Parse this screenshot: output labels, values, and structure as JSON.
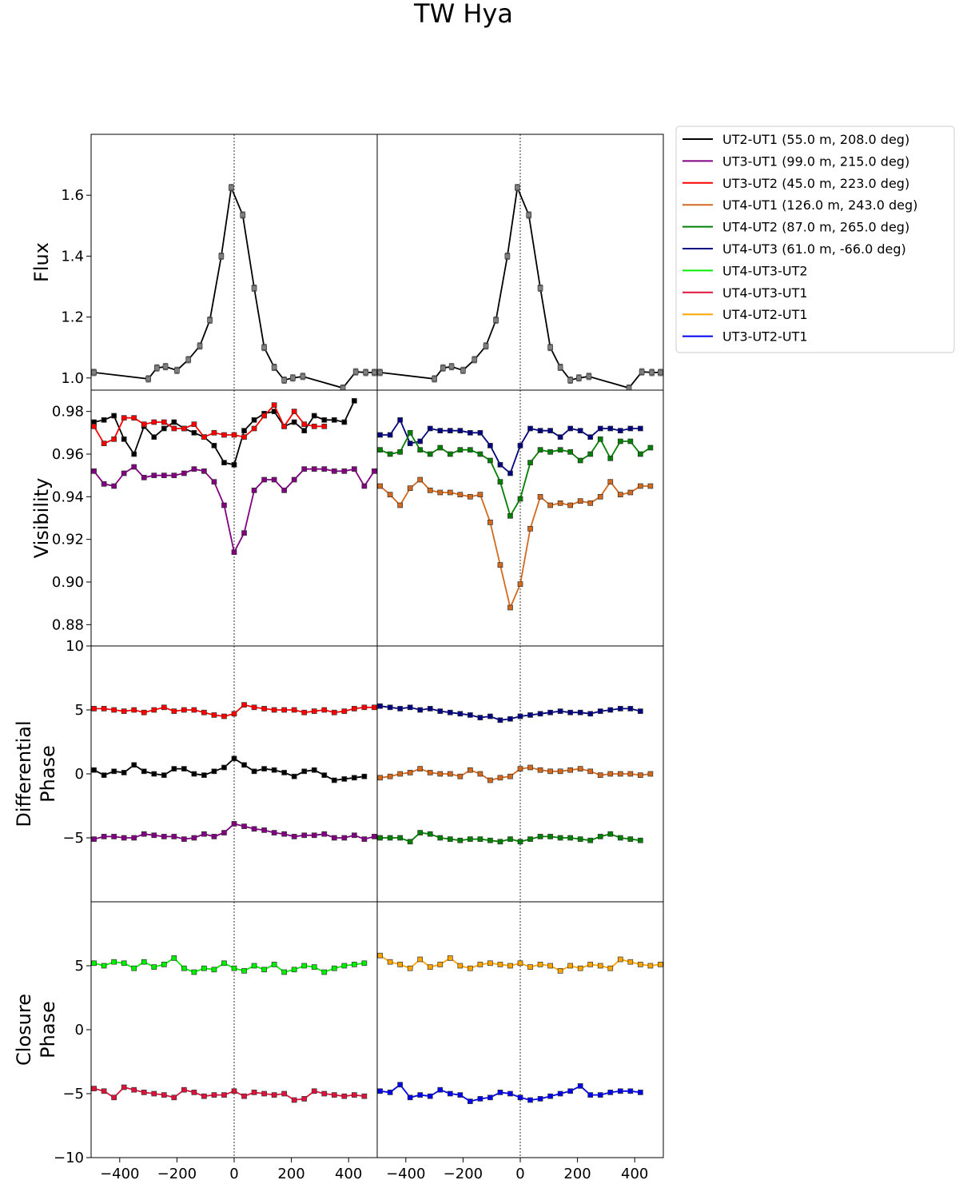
{
  "chart_data": {
    "type": "line",
    "title": "TW Hya",
    "x_range": [
      -500,
      500
    ],
    "x_ticks": [
      -400,
      -200,
      0,
      200,
      400
    ],
    "x_tick_labels": [
      "−400",
      "−200",
      "0",
      "200",
      "400"
    ],
    "x_grid_step": 35,
    "vertical_reference_line_x": 0,
    "grid": false,
    "legend_placement": "outside-right",
    "rows": [
      {
        "key": "flux",
        "ylabel_lines": [
          "Flux"
        ],
        "ylim": [
          0.96,
          1.8
        ],
        "y_ticks": [
          1.0,
          1.2,
          1.4,
          1.6
        ],
        "y_tick_labels": [
          "1.0",
          "1.2",
          "1.4",
          "1.6"
        ]
      },
      {
        "key": "visibility",
        "ylabel_lines": [
          "Visibility"
        ],
        "ylim": [
          0.87,
          0.99
        ],
        "y_ticks": [
          0.88,
          0.9,
          0.92,
          0.94,
          0.96,
          0.98
        ],
        "y_tick_labels": [
          "0.88",
          "0.90",
          "0.92",
          "0.94",
          "0.96",
          "0.98"
        ]
      },
      {
        "key": "diffphase",
        "ylabel_lines": [
          "Differential",
          "Phase"
        ],
        "ylim": [
          -10,
          10
        ],
        "y_ticks": [
          -5,
          0,
          5,
          10
        ],
        "y_tick_labels": [
          "−5",
          "0",
          "5",
          "10"
        ]
      },
      {
        "key": "closure",
        "ylabel_lines": [
          "Closure",
          "Phase"
        ],
        "ylim": [
          -10,
          10
        ],
        "y_ticks": [
          -10,
          -5,
          0,
          5
        ],
        "y_tick_labels": [
          "−10",
          "−5",
          "0",
          "5"
        ]
      }
    ],
    "legend": [
      {
        "name": "UT2-UT1 (55.0 m, 208.0 deg)",
        "color": "#000000"
      },
      {
        "name": "UT3-UT1 (99.0 m, 215.0 deg)",
        "color": "#800080"
      },
      {
        "name": "UT3-UT2 (45.0 m, 223.0 deg)",
        "color": "#ff0000"
      },
      {
        "name": "UT4-UT1 (126.0 m, 243.0 deg)",
        "color": "#d2691e"
      },
      {
        "name": "UT4-UT2 (87.0 m, 265.0 deg)",
        "color": "#008000"
      },
      {
        "name": "UT4-UT3 (61.0 m, -66.0 deg)",
        "color": "#000080"
      },
      {
        "name": "UT4-UT3-UT2",
        "color": "#00ee00"
      },
      {
        "name": "UT4-UT3-UT1",
        "color": "#dc143c"
      },
      {
        "name": "UT4-UT2-UT1",
        "color": "#ffa500"
      },
      {
        "name": "UT3-UT2-UT1",
        "color": "#0000ee"
      }
    ],
    "panels": [
      {
        "row": 0,
        "col": 0,
        "series": [
          {
            "color": "#000000",
            "marker_color": "#808080",
            "errorbars": true,
            "points": [
              [
                -490,
                1.018
              ],
              [
                -300,
                0.997
              ],
              [
                -270,
                1.033
              ],
              [
                -240,
                1.037
              ],
              [
                -200,
                1.025
              ],
              [
                -160,
                1.06
              ],
              [
                -120,
                1.105
              ],
              [
                -85,
                1.19
              ],
              [
                -45,
                1.4
              ],
              [
                -10,
                1.625
              ],
              [
                30,
                1.535
              ],
              [
                70,
                1.295
              ],
              [
                105,
                1.1
              ],
              [
                140,
                1.035
              ],
              [
                175,
                0.993
              ],
              [
                205,
                1.0
              ],
              [
                240,
                1.005
              ],
              [
                380,
                0.967
              ],
              [
                425,
                1.02
              ],
              [
                460,
                1.018
              ],
              [
                490,
                1.018
              ]
            ]
          }
        ]
      },
      {
        "row": 0,
        "col": 1,
        "series": [
          {
            "color": "#000000",
            "marker_color": "#808080",
            "errorbars": true,
            "points": [
              [
                -490,
                1.018
              ],
              [
                -300,
                0.997
              ],
              [
                -270,
                1.033
              ],
              [
                -240,
                1.037
              ],
              [
                -200,
                1.025
              ],
              [
                -160,
                1.06
              ],
              [
                -120,
                1.105
              ],
              [
                -85,
                1.19
              ],
              [
                -45,
                1.4
              ],
              [
                -10,
                1.625
              ],
              [
                30,
                1.535
              ],
              [
                70,
                1.295
              ],
              [
                105,
                1.1
              ],
              [
                140,
                1.035
              ],
              [
                175,
                0.993
              ],
              [
                205,
                1.0
              ],
              [
                240,
                1.005
              ],
              [
                380,
                0.967
              ],
              [
                425,
                1.02
              ],
              [
                460,
                1.018
              ],
              [
                490,
                1.018
              ]
            ]
          }
        ]
      },
      {
        "row": 1,
        "col": 0,
        "series": [
          {
            "color": "#000000",
            "values": [
              0.975,
              0.976,
              0.978,
              0.967,
              0.96,
              0.973,
              0.968,
              0.972,
              0.975,
              0.972,
              0.97,
              0.968,
              0.964,
              0.956,
              0.955,
              0.971,
              0.976,
              0.979,
              0.98,
              0.973,
              0.975,
              0.971,
              0.978,
              0.976,
              0.976,
              0.975,
              0.985
            ]
          },
          {
            "color": "#800080",
            "values": [
              0.952,
              0.946,
              0.945,
              0.951,
              0.954,
              0.949,
              0.95,
              0.95,
              0.95,
              0.951,
              0.953,
              0.952,
              0.947,
              0.936,
              0.914,
              0.923,
              0.943,
              0.948,
              0.948,
              0.943,
              0.948,
              0.953,
              0.953,
              0.953,
              0.952,
              0.952,
              0.953,
              0.945,
              0.952
            ]
          },
          {
            "color": "#ff0000",
            "values": [
              0.973,
              0.965,
              0.967,
              0.977,
              0.977,
              0.974,
              0.975,
              0.975,
              0.972,
              0.972,
              0.974,
              0.968,
              0.97,
              0.969,
              0.969,
              0.968,
              0.972,
              0.978,
              0.983,
              0.973,
              0.98,
              0.974,
              0.973,
              0.973
            ]
          }
        ]
      },
      {
        "row": 1,
        "col": 1,
        "series": [
          {
            "color": "#000080",
            "values": [
              0.969,
              0.969,
              0.976,
              0.965,
              0.966,
              0.972,
              0.971,
              0.971,
              0.971,
              0.97,
              0.97,
              0.964,
              0.955,
              0.951,
              0.964,
              0.972,
              0.971,
              0.971,
              0.968,
              0.972,
              0.971,
              0.968,
              0.972,
              0.972,
              0.971,
              0.972,
              0.972
            ]
          },
          {
            "color": "#008000",
            "values": [
              0.962,
              0.96,
              0.961,
              0.97,
              0.962,
              0.96,
              0.963,
              0.96,
              0.962,
              0.962,
              0.96,
              0.957,
              0.947,
              0.931,
              0.939,
              0.956,
              0.962,
              0.961,
              0.962,
              0.961,
              0.957,
              0.96,
              0.967,
              0.958,
              0.966,
              0.966,
              0.96,
              0.963
            ]
          },
          {
            "color": "#d2691e",
            "values": [
              0.945,
              0.941,
              0.936,
              0.944,
              0.948,
              0.943,
              0.942,
              0.942,
              0.941,
              0.94,
              0.941,
              0.928,
              0.908,
              0.888,
              0.899,
              0.925,
              0.94,
              0.936,
              0.937,
              0.936,
              0.938,
              0.937,
              0.94,
              0.947,
              0.941,
              0.942,
              0.945,
              0.945
            ]
          }
        ]
      },
      {
        "row": 2,
        "col": 0,
        "series": [
          {
            "color": "#ff0000",
            "values": [
              5.1,
              5.1,
              5.0,
              4.9,
              5.0,
              4.8,
              5.0,
              5.2,
              4.9,
              5.0,
              5.0,
              4.8,
              4.6,
              4.5,
              4.7,
              5.4,
              5.2,
              5.1,
              5.0,
              5.0,
              5.0,
              4.8,
              4.9,
              5.0,
              4.8,
              4.9,
              5.1,
              5.2,
              5.2
            ]
          },
          {
            "color": "#000000",
            "values": [
              0.3,
              -0.1,
              0.2,
              0.1,
              0.7,
              0.2,
              0.0,
              -0.1,
              0.4,
              0.4,
              0.0,
              -0.1,
              0.2,
              0.5,
              1.2,
              0.7,
              0.2,
              0.4,
              0.3,
              0.1,
              -0.2,
              0.2,
              0.3,
              -0.1,
              -0.5,
              -0.4,
              -0.3,
              -0.2
            ]
          },
          {
            "color": "#800080",
            "values": [
              -5.1,
              -4.9,
              -4.9,
              -5.0,
              -5.0,
              -4.7,
              -4.8,
              -4.9,
              -4.9,
              -5.1,
              -5.0,
              -4.7,
              -4.9,
              -4.6,
              -3.9,
              -4.1,
              -4.3,
              -4.4,
              -4.6,
              -4.7,
              -4.9,
              -4.8,
              -4.8,
              -4.7,
              -5.0,
              -5.0,
              -4.8,
              -5.1,
              -4.9
            ]
          }
        ]
      },
      {
        "row": 2,
        "col": 1,
        "series": [
          {
            "color": "#000080",
            "values": [
              5.3,
              5.2,
              5.1,
              5.2,
              5.0,
              5.1,
              4.9,
              4.8,
              4.7,
              4.6,
              4.4,
              4.5,
              4.2,
              4.3,
              4.5,
              4.6,
              4.7,
              4.8,
              4.9,
              4.8,
              4.8,
              4.7,
              4.9,
              5.0,
              5.1,
              5.1,
              4.9
            ]
          },
          {
            "color": "#d2691e",
            "values": [
              -0.3,
              -0.2,
              0.0,
              0.1,
              0.4,
              0.1,
              0.0,
              0.0,
              -0.2,
              0.3,
              0.0,
              -0.5,
              -0.3,
              -0.2,
              0.4,
              0.5,
              0.3,
              0.2,
              0.2,
              0.3,
              0.4,
              0.2,
              -0.1,
              0.0,
              0.0,
              0.0,
              -0.1,
              0.0
            ]
          },
          {
            "color": "#008000",
            "values": [
              -5.0,
              -5.0,
              -5.0,
              -5.3,
              -4.6,
              -4.7,
              -5.0,
              -5.1,
              -5.2,
              -5.1,
              -5.1,
              -5.2,
              -5.3,
              -5.1,
              -5.3,
              -5.1,
              -4.9,
              -4.9,
              -5.0,
              -5.0,
              -5.1,
              -5.2,
              -4.9,
              -4.7,
              -5.0,
              -5.1,
              -5.2
            ]
          }
        ]
      },
      {
        "row": 3,
        "col": 0,
        "series": [
          {
            "color": "#00ee00",
            "values": [
              5.2,
              5.0,
              5.3,
              5.2,
              4.8,
              5.3,
              4.9,
              5.1,
              5.6,
              4.8,
              4.5,
              4.8,
              4.7,
              5.2,
              4.8,
              4.6,
              5.0,
              4.7,
              5.1,
              4.5,
              4.7,
              5.0,
              4.9,
              4.5,
              4.8,
              5.0,
              5.1,
              5.2
            ]
          },
          {
            "color": "#dc143c",
            "values": [
              -4.6,
              -4.8,
              -5.3,
              -4.5,
              -4.7,
              -4.9,
              -5.0,
              -5.1,
              -5.3,
              -4.7,
              -4.9,
              -5.2,
              -5.1,
              -5.1,
              -4.8,
              -5.2,
              -4.9,
              -5.0,
              -5.1,
              -5.0,
              -5.5,
              -5.4,
              -4.8,
              -5.0,
              -5.1,
              -5.2,
              -5.1,
              -5.2
            ]
          }
        ]
      },
      {
        "row": 3,
        "col": 1,
        "series": [
          {
            "color": "#ffa500",
            "values": [
              5.8,
              5.3,
              5.1,
              4.8,
              5.5,
              4.9,
              5.1,
              5.6,
              5.0,
              4.8,
              5.1,
              5.2,
              5.1,
              5.0,
              5.2,
              4.9,
              5.1,
              5.0,
              4.6,
              5.0,
              4.8,
              5.1,
              5.0,
              4.8,
              5.5,
              5.3,
              5.1,
              5.0,
              5.1
            ]
          },
          {
            "color": "#0000ee",
            "values": [
              -4.8,
              -4.9,
              -4.3,
              -5.3,
              -5.1,
              -5.2,
              -4.7,
              -5.0,
              -5.1,
              -5.6,
              -5.4,
              -5.3,
              -4.9,
              -5.0,
              -5.3,
              -5.5,
              -5.4,
              -5.2,
              -5.0,
              -4.8,
              -4.4,
              -5.1,
              -5.1,
              -4.9,
              -4.8,
              -4.8,
              -4.9
            ]
          }
        ]
      }
    ]
  }
}
